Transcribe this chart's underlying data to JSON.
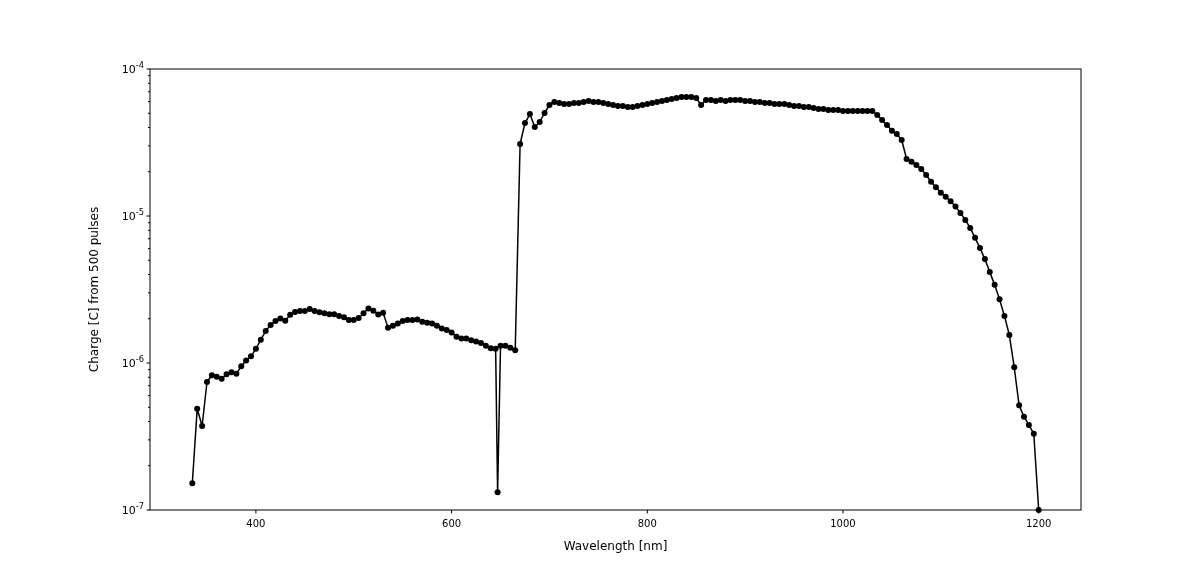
{
  "chart_data": {
    "type": "line",
    "xlabel": "Wavelength [nm]",
    "ylabel": "Charge [C] from 500 pulses",
    "log": "y",
    "marker": "circle",
    "line_style": "solid",
    "grid": false,
    "xlim": [
      291.75,
      1243.25
    ],
    "ylim": [
      1e-07,
      0.0001
    ],
    "xticks": [
      400,
      600,
      800,
      1000,
      1200
    ],
    "yticks": [
      {
        "value": 1e-07,
        "label": "10$^{-7}$"
      },
      {
        "value": 2e-07,
        "label": null
      },
      {
        "value": 3e-07,
        "label": null
      },
      {
        "value": 4e-07,
        "label": null
      },
      {
        "value": 5e-07,
        "label": null
      },
      {
        "value": 6e-07,
        "label": null
      },
      {
        "value": 7e-07,
        "label": null
      },
      {
        "value": 8e-07,
        "label": null
      },
      {
        "value": 9e-07,
        "label": null
      },
      {
        "value": 1e-06,
        "label": "10$^{-6}$"
      },
      {
        "value": 2e-06,
        "label": null
      },
      {
        "value": 3e-06,
        "label": null
      },
      {
        "value": 4e-06,
        "label": null
      },
      {
        "value": 5e-06,
        "label": null
      },
      {
        "value": 6e-06,
        "label": null
      },
      {
        "value": 7e-06,
        "label": null
      },
      {
        "value": 8e-06,
        "label": null
      },
      {
        "value": 9e-06,
        "label": null
      },
      {
        "value": 1e-05,
        "label": "10$^{-5}$"
      },
      {
        "value": 2e-05,
        "label": null
      },
      {
        "value": 3e-05,
        "label": null
      },
      {
        "value": 4e-05,
        "label": null
      },
      {
        "value": 5e-05,
        "label": null
      },
      {
        "value": 6e-05,
        "label": null
      },
      {
        "value": 7e-05,
        "label": null
      },
      {
        "value": 8e-05,
        "label": null
      },
      {
        "value": 9e-05,
        "label": null
      },
      {
        "value": 0.0001,
        "label": "10$^{-4}$"
      }
    ],
    "series": [
      {
        "color": "#000000",
        "x": [
          335,
          340,
          345,
          350,
          355,
          360,
          365,
          370,
          375,
          380,
          385,
          390,
          395,
          400,
          405,
          410,
          415,
          420,
          425,
          430,
          435,
          440,
          445,
          450,
          455,
          460,
          465,
          470,
          475,
          480,
          485,
          490,
          495,
          500,
          505,
          510,
          515,
          520,
          525,
          530,
          535,
          540,
          545,
          550,
          555,
          560,
          565,
          570,
          575,
          580,
          585,
          590,
          595,
          600,
          605,
          610,
          615,
          620,
          625,
          630,
          635,
          640,
          645,
          647,
          650,
          655,
          660,
          665,
          670,
          675,
          680,
          685,
          690,
          695,
          700,
          705,
          710,
          715,
          720,
          725,
          730,
          735,
          740,
          745,
          750,
          755,
          760,
          765,
          770,
          775,
          780,
          785,
          790,
          795,
          800,
          805,
          810,
          815,
          820,
          825,
          830,
          835,
          840,
          845,
          850,
          855,
          860,
          865,
          870,
          875,
          880,
          885,
          890,
          895,
          900,
          905,
          910,
          915,
          920,
          925,
          930,
          935,
          940,
          945,
          950,
          955,
          960,
          965,
          970,
          975,
          980,
          985,
          990,
          995,
          1000,
          1005,
          1010,
          1015,
          1020,
          1025,
          1030,
          1035,
          1040,
          1045,
          1050,
          1055,
          1060,
          1065,
          1070,
          1075,
          1080,
          1085,
          1090,
          1095,
          1100,
          1105,
          1110,
          1115,
          1120,
          1125,
          1130,
          1135,
          1140,
          1145,
          1150,
          1155,
          1160,
          1165,
          1170,
          1175,
          1180,
          1185,
          1190,
          1195,
          1200
        ],
        "values": [
          1.52e-07,
          4.89e-07,
          3.73e-07,
          7.43e-07,
          8.25e-07,
          8.07e-07,
          7.82e-07,
          8.38e-07,
          8.65e-07,
          8.46e-07,
          9.5e-07,
          1.04e-06,
          1.11e-06,
          1.25e-06,
          1.44e-06,
          1.65e-06,
          1.81e-06,
          1.93e-06,
          2.01e-06,
          1.94e-06,
          2.13e-06,
          2.22e-06,
          2.26e-06,
          2.26e-06,
          2.33e-06,
          2.26e-06,
          2.21e-06,
          2.18e-06,
          2.15e-06,
          2.15e-06,
          2.09e-06,
          2.05e-06,
          1.96e-06,
          1.96e-06,
          2.02e-06,
          2.18e-06,
          2.35e-06,
          2.27e-06,
          2.14e-06,
          2.2e-06,
          1.74e-06,
          1.79e-06,
          1.86e-06,
          1.93e-06,
          1.96e-06,
          1.96e-06,
          1.98e-06,
          1.91e-06,
          1.88e-06,
          1.86e-06,
          1.79e-06,
          1.72e-06,
          1.68e-06,
          1.61e-06,
          1.51e-06,
          1.47e-06,
          1.47e-06,
          1.43e-06,
          1.4e-06,
          1.37e-06,
          1.31e-06,
          1.26e-06,
          1.25e-06,
          1.32e-07,
          1.31e-06,
          1.31e-06,
          1.27e-06,
          1.22e-06,
          3.09e-05,
          4.29e-05,
          4.94e-05,
          4.03e-05,
          4.36e-05,
          5.02e-05,
          5.69e-05,
          5.97e-05,
          5.87e-05,
          5.78e-05,
          5.78e-05,
          5.87e-05,
          5.87e-05,
          5.97e-05,
          6.06e-05,
          5.97e-05,
          5.97e-05,
          5.87e-05,
          5.78e-05,
          5.69e-05,
          5.6e-05,
          5.6e-05,
          5.51e-05,
          5.51e-05,
          5.6e-05,
          5.69e-05,
          5.78e-05,
          5.87e-05,
          5.97e-05,
          6.06e-05,
          6.15e-05,
          6.25e-05,
          6.35e-05,
          6.45e-05,
          6.45e-05,
          6.45e-05,
          6.35e-05,
          5.69e-05,
          6.15e-05,
          6.15e-05,
          6.06e-05,
          6.15e-05,
          6.06e-05,
          6.15e-05,
          6.15e-05,
          6.15e-05,
          6.06e-05,
          6.06e-05,
          5.97e-05,
          5.97e-05,
          5.87e-05,
          5.87e-05,
          5.78e-05,
          5.78e-05,
          5.78e-05,
          5.69e-05,
          5.6e-05,
          5.6e-05,
          5.51e-05,
          5.51e-05,
          5.43e-05,
          5.34e-05,
          5.34e-05,
          5.26e-05,
          5.26e-05,
          5.26e-05,
          5.18e-05,
          5.18e-05,
          5.18e-05,
          5.18e-05,
          5.18e-05,
          5.18e-05,
          5.18e-05,
          4.87e-05,
          4.5e-05,
          4.16e-05,
          3.8e-05,
          3.61e-05,
          3.29e-05,
          2.44e-05,
          2.34e-05,
          2.22e-05,
          2.09e-05,
          1.9e-05,
          1.71e-05,
          1.57e-05,
          1.44e-05,
          1.35e-05,
          1.26e-05,
          1.16e-05,
          1.05e-05,
          9.4e-06,
          8.3e-06,
          7.1e-06,
          6.05e-06,
          5.1e-06,
          4.16e-06,
          3.4e-06,
          2.71e-06,
          2.09e-06,
          1.55e-06,
          9.35e-07,
          5.15e-07,
          4.31e-07,
          3.79e-07,
          3.3e-07,
          1e-07
        ]
      }
    ]
  }
}
